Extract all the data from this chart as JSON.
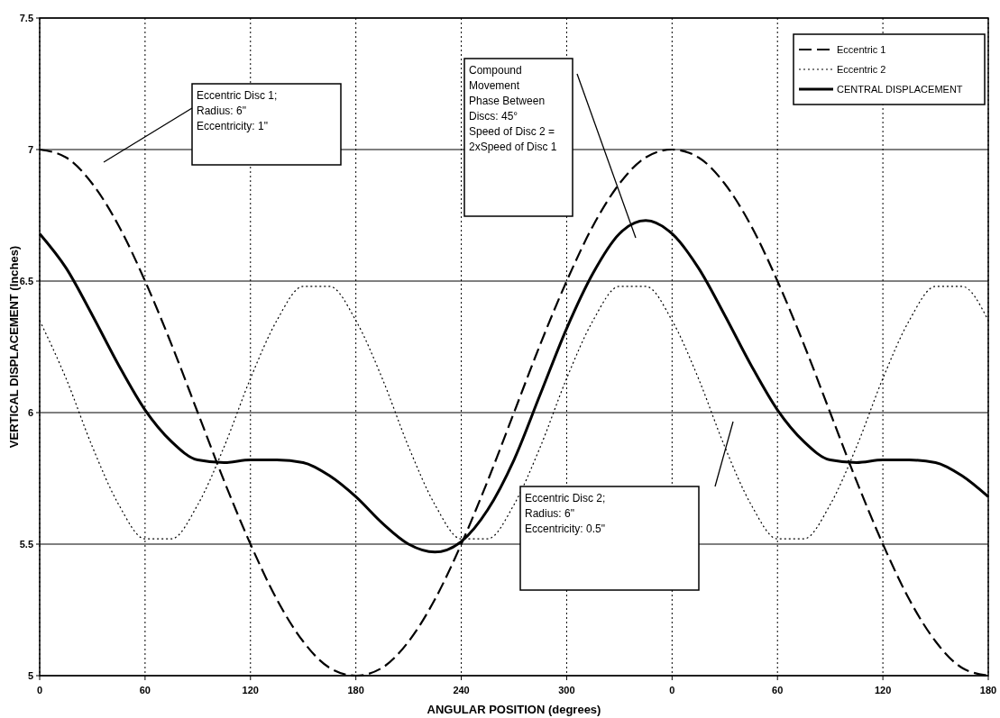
{
  "chart_data": {
    "type": "line",
    "xlabel": "ANGULAR POSITION (degrees)",
    "ylabel": "VERTICAL DISPLACEMENT (Inches)",
    "categories": [
      "0",
      null,
      null,
      null,
      "60",
      null,
      null,
      null,
      "120",
      null,
      null,
      null,
      "180",
      null,
      null,
      null,
      "240",
      null,
      null,
      null,
      "300",
      null,
      null,
      null,
      "0",
      null,
      null,
      null,
      "60",
      null,
      null,
      null,
      "120",
      null,
      null,
      null,
      "180"
    ],
    "series": [
      {
        "name": "Eccentric 1",
        "color": "#000000",
        "line_style": "dashed",
        "values": [
          7,
          6.97,
          6.87,
          6.71,
          6.5,
          6.26,
          6,
          5.74,
          5.5,
          5.29,
          5.13,
          5.03,
          5,
          5.03,
          5.13,
          5.29,
          5.5,
          5.74,
          6,
          6.26,
          6.5,
          6.71,
          6.87,
          6.97,
          7,
          6.97,
          6.87,
          6.71,
          6.5,
          6.26,
          6,
          5.74,
          5.5,
          5.29,
          5.13,
          5.03,
          5
        ]
      },
      {
        "name": "Eccentric 2",
        "color": "#000000",
        "line_style": "dotted",
        "values": [
          6.35,
          6.13,
          5.87,
          5.65,
          5.52,
          5.52,
          5.65,
          5.87,
          6.13,
          6.35,
          6.48,
          6.48,
          6.35,
          6.13,
          5.87,
          5.65,
          5.52,
          5.52,
          5.65,
          5.87,
          6.13,
          6.35,
          6.48,
          6.48,
          6.35,
          6.13,
          5.87,
          5.65,
          5.52,
          5.52,
          5.65,
          5.87,
          6.13,
          6.35,
          6.48,
          6.48,
          6.35
        ]
      },
      {
        "name": "CENTRAL DISPLACEMENT",
        "color": "#000000",
        "line_style": "solid",
        "values": [
          6.68,
          6.55,
          6.37,
          6.18,
          6.01,
          5.89,
          5.82,
          5.81,
          5.82,
          5.82,
          5.81,
          5.76,
          5.68,
          5.58,
          5.5,
          5.47,
          5.51,
          5.63,
          5.82,
          6.07,
          6.32,
          6.53,
          6.68,
          6.73,
          6.68,
          6.55,
          6.37,
          6.18,
          6.01,
          5.89,
          5.82,
          5.81,
          5.82,
          5.82,
          5.81,
          5.76,
          5.68
        ]
      }
    ],
    "ylim": [
      5,
      7.5
    ],
    "yticks": [
      5,
      5.5,
      6,
      6.5,
      7,
      7.5
    ],
    "grid": true,
    "legend": "top right",
    "annotations": [
      "Eccentric Disc 1;\nRadius: 6\"\nEccentricity: 1\"",
      "Compound\nMovement\nPhase Between\nDiscs: 45°\nSpeed of Disc 2 =\n2xSpeed of Disc 1",
      "Eccentric Disc 2;\nRadius: 6\"\nEccentricity: 0.5\""
    ]
  }
}
